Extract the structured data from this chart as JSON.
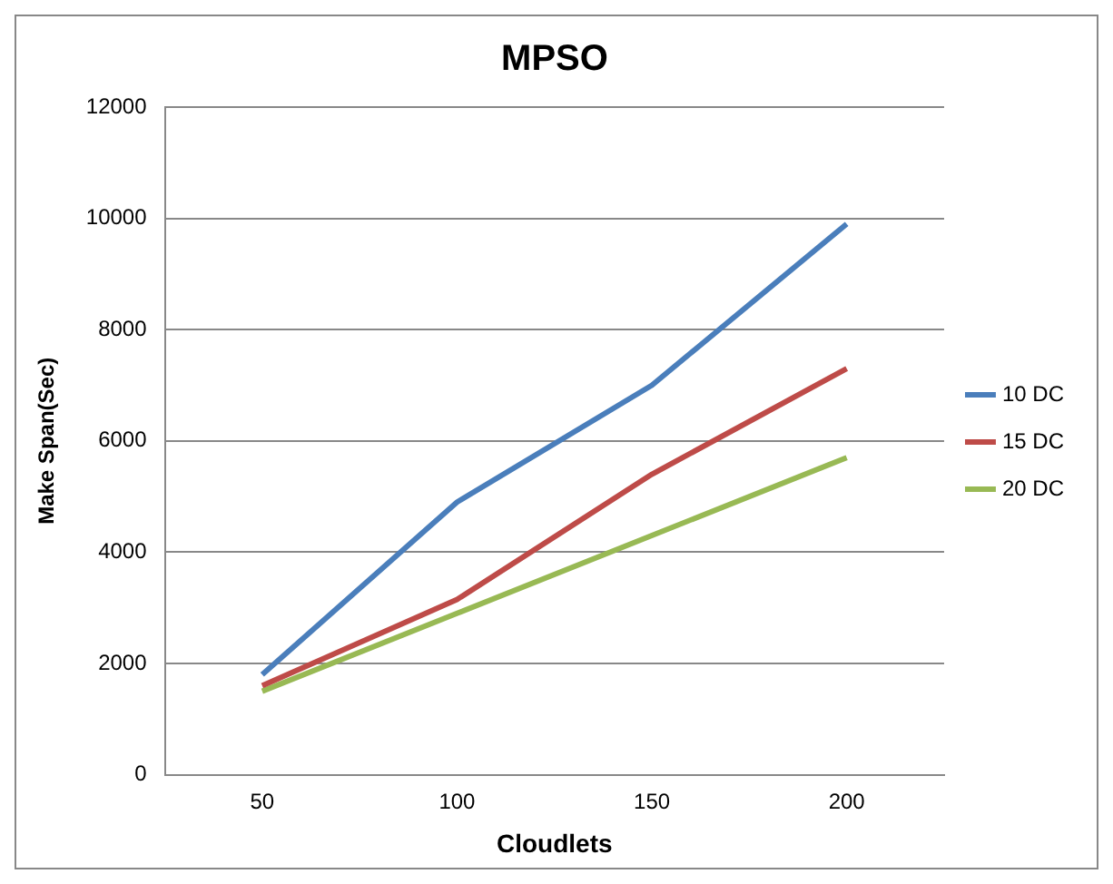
{
  "chart_data": {
    "type": "line",
    "title": "MPSO",
    "xlabel": "Cloudlets",
    "ylabel": "Make Span(Sec)",
    "categories": [
      "50",
      "100",
      "150",
      "200"
    ],
    "series": [
      {
        "name": "10 DC",
        "color": "#4a7ebb",
        "values": [
          1800,
          4900,
          7000,
          9900
        ]
      },
      {
        "name": "15 DC",
        "color": "#be4b48",
        "values": [
          1600,
          3150,
          5400,
          7300
        ]
      },
      {
        "name": "20 DC",
        "color": "#98b954",
        "values": [
          1500,
          2900,
          4300,
          5700
        ]
      }
    ],
    "ylim": [
      0,
      12000
    ],
    "yticks": [
      0,
      2000,
      4000,
      6000,
      8000,
      10000,
      12000
    ],
    "grid": "y",
    "legend": "right",
    "marker": "none",
    "line_style": "solid"
  }
}
